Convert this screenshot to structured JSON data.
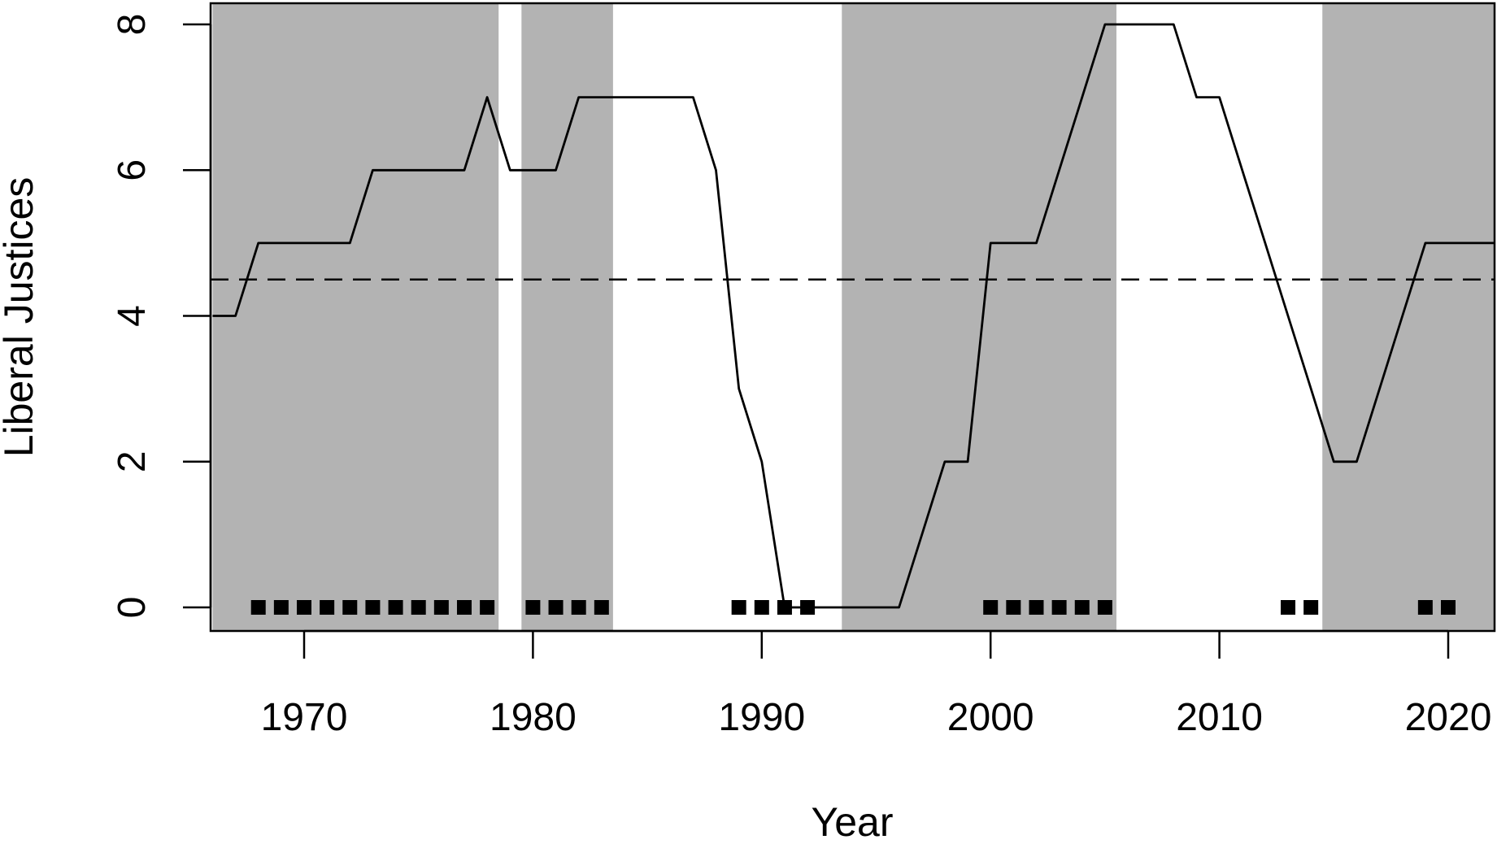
{
  "chart_data": {
    "type": "line",
    "title": "",
    "xlabel": "Year",
    "ylabel": "Liberal Justices",
    "xlim": [
      1966,
      2022
    ],
    "ylim": [
      0,
      8
    ],
    "x_ticks": [
      1970,
      1980,
      1990,
      2000,
      2010,
      2020
    ],
    "x_tick_labels": [
      "1970",
      "1980",
      "1990",
      "2000",
      "2010",
      "2020"
    ],
    "y_ticks": [
      0,
      2,
      4,
      6,
      8
    ],
    "y_tick_labels": [
      "0",
      "2",
      "4",
      "6",
      "8"
    ],
    "grid": false,
    "reference_line": {
      "y": 4.5,
      "style": "dashed",
      "color": "#000000"
    },
    "shaded_periods": [
      {
        "start": 1966,
        "end": 1978.5
      },
      {
        "start": 1979.5,
        "end": 1983.5
      },
      {
        "start": 1993.5,
        "end": 2005.5
      },
      {
        "start": 2014.5,
        "end": 2022
      }
    ],
    "shade_color": "#b3b3b3",
    "series": [
      {
        "x": [
          1966,
          1967,
          1968,
          1969,
          1970,
          1971,
          1972,
          1973,
          1974,
          1975,
          1976,
          1977,
          1978,
          1979,
          1980,
          1981,
          1982,
          1983,
          1984,
          1985,
          1986,
          1987,
          1988,
          1989,
          1990,
          1991,
          1992,
          1993,
          1994,
          1995,
          1996,
          1997,
          1998,
          1999,
          2000,
          2001,
          2002,
          2003,
          2004,
          2005,
          2006,
          2007,
          2008,
          2009,
          2010,
          2011,
          2012,
          2013,
          2014,
          2015,
          2016,
          2017,
          2018,
          2019,
          2020,
          2021,
          2022
        ],
        "y": [
          4,
          4,
          5,
          5,
          5,
          5,
          5,
          6,
          6,
          6,
          6,
          6,
          7,
          6,
          6,
          6,
          7,
          7,
          7,
          7,
          7,
          7,
          6,
          3,
          2,
          0,
          0,
          0,
          0,
          0,
          0,
          1,
          2,
          2,
          5,
          5,
          5,
          6,
          7,
          8,
          8,
          8,
          8,
          7,
          7,
          6,
          5,
          4,
          3,
          2,
          2,
          3,
          4,
          5,
          5,
          5,
          5
        ],
        "color": "#000000"
      }
    ],
    "markers": {
      "y": 0,
      "shape": "square",
      "color": "#000000",
      "x": [
        1968,
        1969,
        1970,
        1971,
        1972,
        1973,
        1974,
        1975,
        1976,
        1977,
        1978,
        1980,
        1981,
        1982,
        1983,
        1989,
        1990,
        1991,
        1992,
        2000,
        2001,
        2002,
        2003,
        2004,
        2005,
        2013,
        2014,
        2019,
        2020
      ]
    }
  }
}
